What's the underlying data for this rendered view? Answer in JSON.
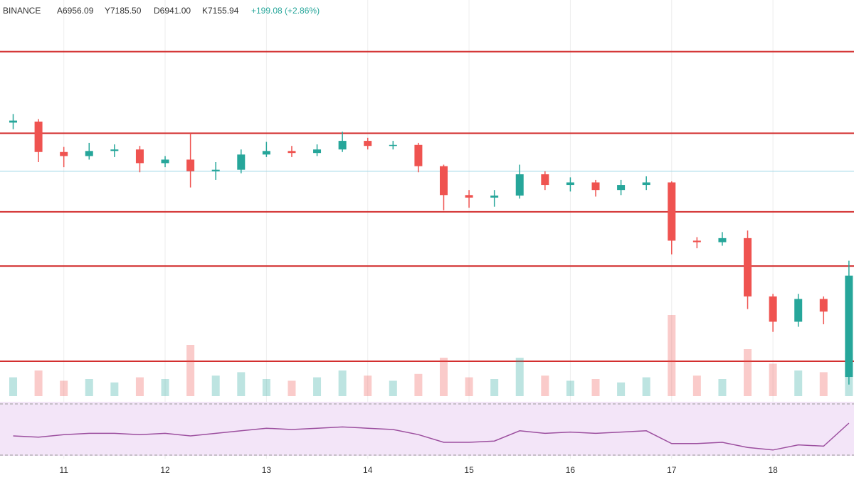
{
  "chart_data": {
    "type": "candlestick",
    "header": {
      "exchange": "BINANCE",
      "open": "A6956.09",
      "high": "Y7185.50",
      "low": "D6941.00",
      "close": "K7155.94",
      "change": "+199.08 (+2.86%)"
    },
    "xlim": [
      10.37,
      18.8
    ],
    "xticks": [
      11,
      12,
      13,
      14,
      15,
      16,
      17,
      18
    ],
    "ylim": [
      6900,
      7700
    ],
    "grid": true,
    "up_color": "#26a69a",
    "down_color": "#ef5350",
    "x": [
      10.5,
      10.75,
      11,
      11.25,
      11.5,
      11.75,
      12,
      12.25,
      12.5,
      12.75,
      13,
      13.25,
      13.5,
      13.75,
      14,
      14.25,
      14.5,
      14.75,
      15,
      15.25,
      15.5,
      15.75,
      16,
      16.25,
      16.5,
      16.75,
      17,
      17.25,
      17.5,
      17.75,
      18,
      18.25,
      18.5,
      18.75
    ],
    "open": [
      7458,
      7460,
      7400,
      7392,
      7402,
      7405,
      7378,
      7385,
      7362,
      7365,
      7395,
      7402,
      7398,
      7405,
      7422,
      7412,
      7414,
      7372,
      7315,
      7310,
      7314,
      7356,
      7335,
      7340,
      7325,
      7335,
      7340,
      7225,
      7222,
      7230,
      7115,
      7065,
      7110,
      6956.09
    ],
    "high": [
      7475,
      7465,
      7410,
      7418,
      7415,
      7412,
      7392,
      7437,
      7380,
      7405,
      7420,
      7412,
      7415,
      7440,
      7428,
      7422,
      7418,
      7375,
      7325,
      7325,
      7375,
      7362,
      7350,
      7345,
      7345,
      7352,
      7342,
      7232,
      7242,
      7245,
      7120,
      7120,
      7115,
      7185.5
    ],
    "low": [
      7445,
      7380,
      7370,
      7385,
      7390,
      7360,
      7370,
      7330,
      7345,
      7358,
      7390,
      7390,
      7392,
      7400,
      7405,
      7405,
      7360,
      7285,
      7290,
      7292,
      7308,
      7325,
      7322,
      7312,
      7315,
      7325,
      7198,
      7210,
      7215,
      7090,
      7045,
      7055,
      7060,
      6941
    ],
    "close": [
      7462,
      7400,
      7392,
      7402,
      7405,
      7378,
      7385,
      7362,
      7365,
      7395,
      7402,
      7398,
      7405,
      7422,
      7412,
      7414,
      7372,
      7315,
      7310,
      7314,
      7356,
      7335,
      7340,
      7325,
      7335,
      7340,
      7225,
      7222,
      7230,
      7115,
      7065,
      7110,
      7085,
      7155.94
    ],
    "levels": [
      7598,
      7437,
      7282,
      7175,
      6987
    ],
    "level_color": "#d32f2f",
    "reference_line": 7362,
    "reference_color": "#9fd6e6",
    "volume": [
      22,
      30,
      18,
      20,
      16,
      22,
      20,
      60,
      24,
      28,
      20,
      18,
      22,
      30,
      24,
      18,
      26,
      45,
      22,
      20,
      45,
      24,
      18,
      20,
      16,
      22,
      95,
      24,
      20,
      55,
      38,
      30,
      28,
      50
    ],
    "vlim": [
      0,
      100
    ],
    "rsi": [
      45,
      44,
      46,
      47,
      47,
      46,
      47,
      45,
      47,
      49,
      51,
      50,
      51,
      52,
      51,
      50,
      46,
      40,
      40,
      41,
      49,
      47,
      48,
      47,
      48,
      49,
      39,
      39,
      40,
      36,
      34,
      38,
      37,
      55
    ],
    "rsi_lim": [
      20,
      80
    ],
    "rsi_band": [
      30,
      70
    ],
    "rsi_color": "#9c4f9f"
  }
}
